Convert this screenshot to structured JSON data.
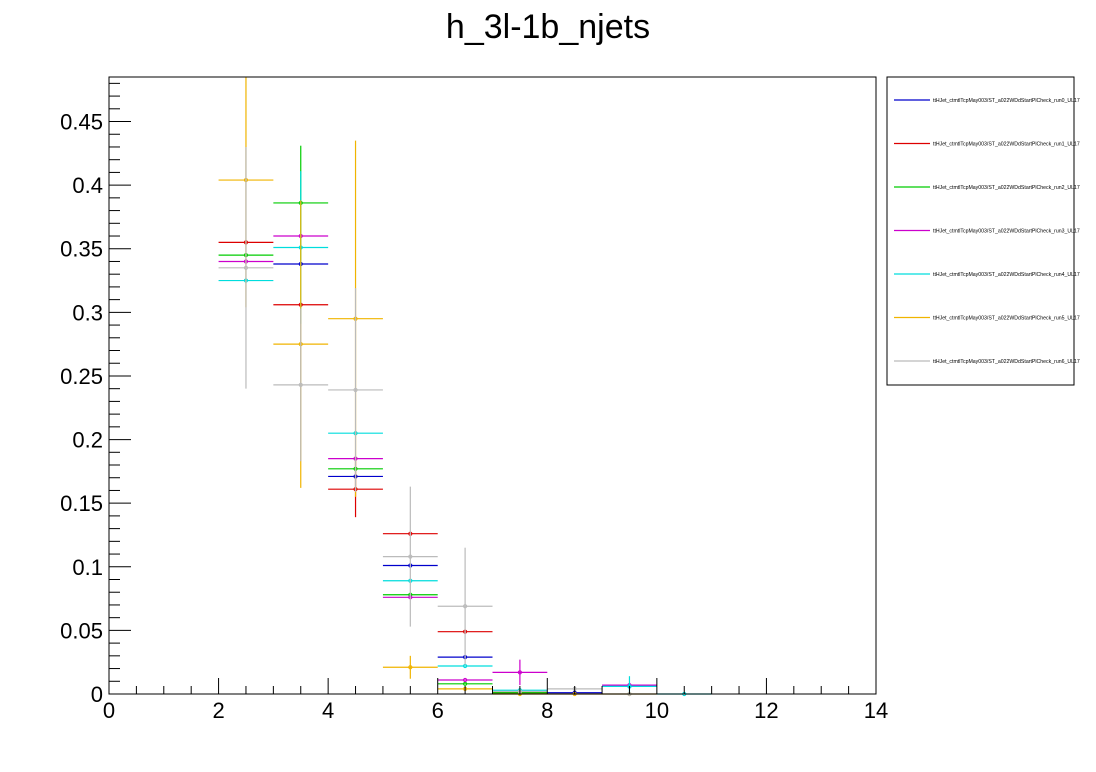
{
  "chart_data": {
    "type": "scatter",
    "title": "h_3l-1b_njets",
    "xlabel": "",
    "ylabel": "",
    "xlim": [
      0,
      14
    ],
    "ylim": [
      0,
      0.485
    ],
    "x_ticks": [
      "0",
      "2",
      "4",
      "6",
      "8",
      "10",
      "12",
      "14"
    ],
    "y_ticks": [
      "0",
      "0.05",
      "0.1",
      "0.15",
      "0.2",
      "0.25",
      "0.3",
      "0.35",
      "0.4",
      "0.45"
    ],
    "grid": false,
    "legend_position": "top-right",
    "bin_half_width": 0.5,
    "series": [
      {
        "name": "ttHJet_ctmtlTcpMay003/ST_a022WDdStartPlCheck_run0_UL17",
        "color": "#0000cc",
        "points": [
          {
            "x": 3.5,
            "y": 0.338,
            "err": 0.0
          },
          {
            "x": 4.5,
            "y": 0.171,
            "err": 0.0
          },
          {
            "x": 5.5,
            "y": 0.101,
            "err": 0.0
          },
          {
            "x": 6.5,
            "y": 0.029,
            "err": 0.0
          },
          {
            "x": 7.5,
            "y": 0.002,
            "err": 0.0
          },
          {
            "x": 8.5,
            "y": 0.001,
            "err": 0.0
          },
          {
            "x": 9.5,
            "y": 0.006,
            "err": 0.0
          }
        ]
      },
      {
        "name": "ttHJet_ctmtlTcpMay003/ST_a022WDdStartPlCheck_run1_UL17",
        "color": "#dd0000",
        "points": [
          {
            "x": 2.5,
            "y": 0.355,
            "err": 0.0
          },
          {
            "x": 3.5,
            "y": 0.306,
            "err": 0.0
          },
          {
            "x": 4.5,
            "y": 0.161,
            "err": 0.022
          },
          {
            "x": 5.5,
            "y": 0.126,
            "err": 0.0
          },
          {
            "x": 6.5,
            "y": 0.049,
            "err": 0.0
          },
          {
            "x": 7.5,
            "y": 0.001,
            "err": 0.0
          }
        ]
      },
      {
        "name": "ttHJet_ctmtlTcpMay003/ST_a022WDdStartPlCheck_run2_UL17",
        "color": "#00cc00",
        "points": [
          {
            "x": 2.5,
            "y": 0.345,
            "err": 0.0
          },
          {
            "x": 3.5,
            "y": 0.386,
            "err": 0.045
          },
          {
            "x": 4.5,
            "y": 0.177,
            "err": 0.0
          },
          {
            "x": 5.5,
            "y": 0.078,
            "err": 0.0
          },
          {
            "x": 6.5,
            "y": 0.008,
            "err": 0.0
          },
          {
            "x": 7.5,
            "y": 0.001,
            "err": 0.0
          }
        ]
      },
      {
        "name": "ttHJet_ctmtlTcpMay003/ST_a022WDdStartPlCheck_run3_UL17",
        "color": "#cc00cc",
        "points": [
          {
            "x": 2.5,
            "y": 0.34,
            "err": 0.0
          },
          {
            "x": 3.5,
            "y": 0.36,
            "err": 0.0
          },
          {
            "x": 4.5,
            "y": 0.185,
            "err": 0.0
          },
          {
            "x": 5.5,
            "y": 0.076,
            "err": 0.0
          },
          {
            "x": 6.5,
            "y": 0.011,
            "err": 0.0
          },
          {
            "x": 7.5,
            "y": 0.017,
            "err": 0.01
          },
          {
            "x": 9.5,
            "y": 0.007,
            "err": 0.0
          }
        ]
      },
      {
        "name": "ttHJet_ctmtlTcpMay003/ST_a022WDdStartPlCheck_run4_UL17",
        "color": "#00dddd",
        "points": [
          {
            "x": 2.5,
            "y": 0.325,
            "err": 0.0
          },
          {
            "x": 3.5,
            "y": 0.351,
            "err": 0.06
          },
          {
            "x": 4.5,
            "y": 0.205,
            "err": 0.0
          },
          {
            "x": 5.5,
            "y": 0.089,
            "err": 0.0
          },
          {
            "x": 6.5,
            "y": 0.022,
            "err": 0.0
          },
          {
            "x": 7.5,
            "y": 0.003,
            "err": 0.0
          },
          {
            "x": 9.5,
            "y": 0.006,
            "err": 0.008
          },
          {
            "x": 10.5,
            "y": 0.0,
            "err": 0.0
          }
        ]
      },
      {
        "name": "ttHJet_ctmtlTcpMay003/ST_a022WDdStartPlCheck_run5_UL17",
        "color": "#f0b400",
        "points": [
          {
            "x": 2.5,
            "y": 0.404,
            "err": 0.1
          },
          {
            "x": 3.5,
            "y": 0.275,
            "err": 0.113
          },
          {
            "x": 4.5,
            "y": 0.295,
            "err": 0.14
          },
          {
            "x": 5.5,
            "y": 0.021,
            "err": 0.009
          },
          {
            "x": 6.5,
            "y": 0.004,
            "err": 0.0
          },
          {
            "x": 7.5,
            "y": 0.0,
            "err": 0.0
          },
          {
            "x": 8.5,
            "y": 0.0,
            "err": 0.0
          },
          {
            "x": 9.5,
            "y": 0.0,
            "err": 0.0
          }
        ]
      },
      {
        "name": "ttHJet_ctmtlTcpMay003/ST_a022WDdStartPlCheck_run6_UL17",
        "color": "#bbbbbb",
        "points": [
          {
            "x": 2.5,
            "y": 0.335,
            "err": 0.095
          },
          {
            "x": 3.5,
            "y": 0.243,
            "err": 0.06
          },
          {
            "x": 4.5,
            "y": 0.239,
            "err": 0.08
          },
          {
            "x": 5.5,
            "y": 0.108,
            "err": 0.055
          },
          {
            "x": 6.5,
            "y": 0.069,
            "err": 0.046
          },
          {
            "x": 7.5,
            "y": 0.002,
            "err": 0.0
          },
          {
            "x": 8.5,
            "y": 0.004,
            "err": 0.0
          },
          {
            "x": 9.5,
            "y": 0.0,
            "err": 0.0
          }
        ]
      }
    ]
  }
}
